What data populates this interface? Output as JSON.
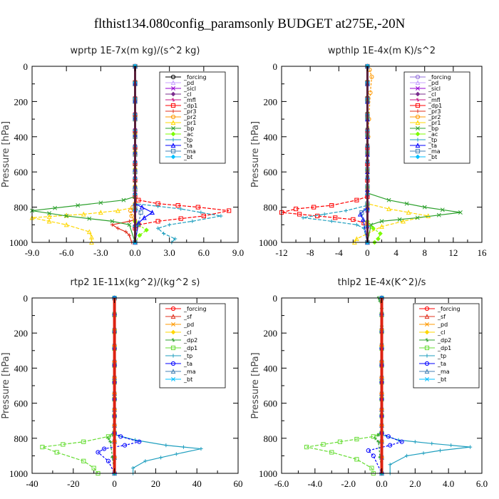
{
  "title": "flthist134.080config_paramsonly  BUDGET at275E,-20N",
  "chart_data": [
    {
      "type": "line",
      "title": "wprtp   1E-7x(m kg)/(s^2 kg)",
      "ylabel": "Pressure [hPa]",
      "xlim": [
        -9.0,
        9.0
      ],
      "ylim": [
        1000,
        0
      ],
      "xticks": [
        "-9.0",
        "-6.0",
        "-3.0",
        "0.0",
        "3.0",
        "6.0",
        "9.0"
      ],
      "yticks": [
        "0",
        "200",
        "400",
        "600",
        "800",
        "1000"
      ],
      "legend": [
        "_forcing",
        "_pd",
        "_sicl",
        "_cl",
        "_mfl",
        "_dp1",
        "_pr3",
        "_pr2",
        "_pr1",
        "_bp",
        "_ac",
        "_tp",
        "_ta",
        "_ma",
        "_bt"
      ],
      "series": [
        {
          "name": "_forcing",
          "color": "#000000",
          "x": [
            0,
            0
          ],
          "y": [
            0,
            1000
          ]
        },
        {
          "name": "_pd",
          "color": "#c8a2ff",
          "x": [
            0,
            0
          ],
          "y": [
            0,
            1000
          ]
        },
        {
          "name": "_sicl",
          "color": "#9400d3",
          "x": [
            0,
            0
          ],
          "y": [
            0,
            1000
          ]
        },
        {
          "name": "_cl",
          "color": "#7b2d8e",
          "x": [
            0,
            0
          ],
          "y": [
            0,
            1000
          ]
        },
        {
          "name": "_mfl",
          "color": "#c71585",
          "x": [
            0,
            0
          ],
          "y": [
            0,
            1000
          ]
        },
        {
          "name": "_dp1",
          "color": "#ff0000",
          "x": [
            0,
            0,
            0.3,
            2.0,
            5.5,
            8.2,
            6.0,
            2.0,
            0.3,
            0,
            0
          ],
          "y": [
            0,
            740,
            760,
            780,
            800,
            820,
            850,
            880,
            900,
            920,
            1000
          ]
        },
        {
          "name": "_pr3",
          "color": "#e0301e",
          "x": [
            0,
            0,
            -0.5,
            -2.0,
            -1.5,
            -0.8,
            -0.5,
            -0.3
          ],
          "y": [
            0,
            870,
            880,
            900,
            920,
            940,
            960,
            1000
          ]
        },
        {
          "name": "_pr2",
          "color": "#ff9900",
          "x": [
            0,
            0,
            -0.2,
            -0.4,
            -0.3,
            0,
            0
          ],
          "y": [
            0,
            780,
            800,
            820,
            850,
            880,
            1000
          ]
        },
        {
          "name": "_pr1",
          "color": "#ffd700",
          "x": [
            0,
            0,
            -1.5,
            -4.5,
            -9.0,
            -6.0,
            -4.0,
            -3.8,
            -3.8
          ],
          "y": [
            0,
            800,
            820,
            840,
            860,
            900,
            940,
            970,
            1000
          ]
        },
        {
          "name": "_bp",
          "color": "#2ca02c",
          "x": [
            0,
            0,
            -1.0,
            -5.0,
            -9.0,
            -6.0,
            -2.0,
            -0.5,
            0
          ],
          "y": [
            0,
            740,
            760,
            790,
            820,
            850,
            880,
            900,
            1000
          ]
        },
        {
          "name": "_ac",
          "color": "#7cfc00",
          "x": [
            0,
            0,
            0.3,
            1.0,
            0.4,
            0
          ],
          "y": [
            0,
            880,
            900,
            930,
            960,
            1000
          ]
        },
        {
          "name": "_tp",
          "color": "#1f9fbf",
          "x": [
            0,
            0,
            4.0,
            7.5,
            5.0,
            3.0,
            2.0,
            2.5,
            3.5,
            3.2
          ],
          "y": [
            0,
            780,
            810,
            850,
            880,
            900,
            920,
            950,
            980,
            1000
          ]
        },
        {
          "name": "_ta",
          "color": "#0000ff",
          "x": [
            0,
            0,
            0.6,
            1.5,
            0.8,
            0.3,
            0
          ],
          "y": [
            0,
            780,
            800,
            830,
            860,
            890,
            1000
          ]
        },
        {
          "name": "_ma",
          "color": "#4682b4",
          "x": [
            0,
            0,
            0.5,
            0
          ],
          "y": [
            0,
            800,
            830,
            1000
          ]
        },
        {
          "name": "_bt",
          "color": "#00bfff",
          "x": [
            0,
            0
          ],
          "y": [
            0,
            1000
          ]
        }
      ]
    },
    {
      "type": "line",
      "title": "wpthlp   1E-4x(m K)/s^2",
      "ylabel": "Pressure [hPa]",
      "xlim": [
        -12,
        16
      ],
      "ylim": [
        1000,
        0
      ],
      "xticks": [
        "-12",
        "-8",
        "-4",
        "0",
        "4",
        "8",
        "12",
        "16"
      ],
      "yticks": [
        "0",
        "200",
        "400",
        "600",
        "800",
        "1000"
      ],
      "legend": [
        "_forcing",
        "_pd",
        "_sicl",
        "_cl",
        "_mfl",
        "_dp1",
        "_pr3",
        "_pr2",
        "_pr1",
        "_bp",
        "_ac",
        "_tp",
        "_ta",
        "_ma",
        "_bt"
      ],
      "series": [
        {
          "name": "_forcing",
          "color": "#9370db",
          "x": [
            0,
            0
          ],
          "y": [
            0,
            1000
          ]
        },
        {
          "name": "_pd",
          "color": "#c8a2ff",
          "x": [
            0,
            0
          ],
          "y": [
            0,
            1000
          ]
        },
        {
          "name": "_sicl",
          "color": "#9400d3",
          "x": [
            0,
            0
          ],
          "y": [
            0,
            1000
          ]
        },
        {
          "name": "_cl",
          "color": "#7b2d8e",
          "x": [
            0,
            0
          ],
          "y": [
            0,
            1000
          ]
        },
        {
          "name": "_mfl",
          "color": "#c71585",
          "x": [
            0,
            0
          ],
          "y": [
            0,
            1000
          ]
        },
        {
          "name": "_dp1",
          "color": "#ff0000",
          "x": [
            0,
            0,
            -1.5,
            -5.0,
            -10.0,
            -12.0,
            -7.0,
            -2.0,
            -0.5,
            0
          ],
          "y": [
            0,
            740,
            760,
            790,
            810,
            830,
            850,
            870,
            890,
            1000
          ]
        },
        {
          "name": "_pr3",
          "color": "#e0301e",
          "x": [
            0,
            0
          ],
          "y": [
            0,
            1000
          ]
        },
        {
          "name": "_pr2",
          "color": "#ff9900",
          "x": [
            0,
            0.3,
            0.6,
            0.4,
            0.2,
            0,
            0
          ],
          "y": [
            0,
            20,
            60,
            150,
            300,
            500,
            1000
          ]
        },
        {
          "name": "_pr1",
          "color": "#ffd700",
          "x": [
            0,
            0,
            3.0,
            8.5,
            5.0,
            2.0,
            0,
            -1.5,
            -1.8
          ],
          "y": [
            0,
            780,
            810,
            850,
            880,
            910,
            950,
            980,
            1000
          ]
        },
        {
          "name": "_bp",
          "color": "#2ca02c",
          "x": [
            0,
            0,
            3.0,
            8.0,
            13.0,
            7.0,
            2.0,
            0.5,
            0
          ],
          "y": [
            0,
            720,
            760,
            800,
            830,
            860,
            880,
            900,
            1000
          ]
        },
        {
          "name": "_ac",
          "color": "#7cfc00",
          "x": [
            0,
            0,
            0.8,
            1.8,
            1.5,
            1.0
          ],
          "y": [
            0,
            880,
            920,
            950,
            980,
            1000
          ]
        },
        {
          "name": "_tp",
          "color": "#1f9fbf",
          "x": [
            0,
            0,
            -3.0,
            -9.0,
            -5.0,
            -1.5,
            -0.5,
            0
          ],
          "y": [
            0,
            790,
            820,
            860,
            880,
            900,
            920,
            1000
          ]
        },
        {
          "name": "_ta",
          "color": "#0000ff",
          "x": [
            0,
            0,
            -1.0,
            -0.6,
            0
          ],
          "y": [
            0,
            800,
            840,
            870,
            1000
          ]
        },
        {
          "name": "_ma",
          "color": "#4682b4",
          "x": [
            0,
            0,
            -0.8,
            0
          ],
          "y": [
            0,
            780,
            830,
            1000
          ]
        },
        {
          "name": "_bt",
          "color": "#00bfff",
          "x": [
            0,
            0
          ],
          "y": [
            0,
            1000
          ]
        }
      ]
    },
    {
      "type": "line",
      "title": "rtp2   1E-11x(kg^2)/(kg^2 s)",
      "ylabel": "Pressure [hPa]",
      "xlim": [
        -40,
        60
      ],
      "ylim": [
        1000,
        0
      ],
      "xticks": [
        "-40",
        "-20",
        "0",
        "20",
        "40",
        "60"
      ],
      "yticks": [
        "0",
        "200",
        "400",
        "600",
        "800",
        "1000"
      ],
      "legend": [
        "_forcing",
        "_sf",
        "_pd",
        "_cl",
        "_dp2",
        "_dp1",
        "_tp",
        "_ta",
        "_ma",
        "_bt"
      ],
      "series": [
        {
          "name": "_forcing",
          "color": "#ff0000",
          "x": [
            0,
            0
          ],
          "y": [
            0,
            1000
          ]
        },
        {
          "name": "_sf",
          "color": "#e0301e",
          "x": [
            0,
            0
          ],
          "y": [
            0,
            1000
          ]
        },
        {
          "name": "_pd",
          "color": "#ff9900",
          "x": [
            0,
            0
          ],
          "y": [
            0,
            1000
          ]
        },
        {
          "name": "_cl",
          "color": "#ffd700",
          "x": [
            0,
            0
          ],
          "y": [
            0,
            1000
          ]
        },
        {
          "name": "_dp2",
          "color": "#2ca02c",
          "x": [
            0,
            0,
            -1.0,
            -3.0,
            -2.0,
            0
          ],
          "y": [
            0,
            760,
            780,
            800,
            820,
            1000
          ]
        },
        {
          "name": "_dp1",
          "color": "#66dd33",
          "x": [
            0,
            0,
            -3.0,
            -15.0,
            -35.0,
            -28.0,
            -15.0,
            -10.0,
            -8.0
          ],
          "y": [
            0,
            770,
            790,
            820,
            850,
            880,
            930,
            970,
            1000
          ]
        },
        {
          "name": "_tp",
          "color": "#1f9fbf",
          "x": [
            0,
            0,
            10.0,
            25.0,
            42.0,
            30.0,
            15.0,
            9.0,
            9.0
          ],
          "y": [
            0,
            780,
            810,
            840,
            860,
            890,
            930,
            970,
            1000
          ]
        },
        {
          "name": "_ta",
          "color": "#0000ff",
          "x": [
            0,
            0,
            3.0,
            12.0,
            5.0,
            -5.0,
            -8.0,
            -3.0,
            0
          ],
          "y": [
            0,
            770,
            790,
            820,
            840,
            860,
            880,
            930,
            1000
          ]
        },
        {
          "name": "_ma",
          "color": "#4682b4",
          "x": [
            0,
            0
          ],
          "y": [
            0,
            1000
          ]
        },
        {
          "name": "_bt",
          "color": "#00bfff",
          "x": [
            0,
            0
          ],
          "y": [
            0,
            1000
          ]
        }
      ]
    },
    {
      "type": "line",
      "title": "thlp2   1E-4x(K^2)/s",
      "ylabel": "Pressure [hPa]",
      "xlim": [
        -6.0,
        6.0
      ],
      "ylim": [
        1000,
        0
      ],
      "xticks": [
        "-6.0",
        "-4.0",
        "-2.0",
        "0.0",
        "2.0",
        "4.0",
        "6.0"
      ],
      "yticks": [
        "0",
        "200",
        "400",
        "600",
        "800",
        "1000"
      ],
      "legend": [
        "_forcing",
        "_sf",
        "_pd",
        "_cl",
        "_dp2",
        "_dp1",
        "_tp",
        "_ta",
        "_ma",
        "_bt"
      ],
      "series": [
        {
          "name": "_forcing",
          "color": "#ff0000",
          "x": [
            0,
            0
          ],
          "y": [
            0,
            1000
          ]
        },
        {
          "name": "_sf",
          "color": "#e0301e",
          "x": [
            0,
            0
          ],
          "y": [
            0,
            1000
          ]
        },
        {
          "name": "_pd",
          "color": "#ff9900",
          "x": [
            0,
            0
          ],
          "y": [
            0,
            1000
          ]
        },
        {
          "name": "_cl",
          "color": "#ffd700",
          "x": [
            0,
            0
          ],
          "y": [
            0,
            1000
          ]
        },
        {
          "name": "_dp2",
          "color": "#2ca02c",
          "x": [
            -0.2,
            -0.1,
            0,
            0,
            -0.2,
            -0.4,
            -0.2,
            0
          ],
          "y": [
            0,
            20,
            60,
            760,
            780,
            800,
            820,
            1000
          ]
        },
        {
          "name": "_dp1",
          "color": "#66dd33",
          "x": [
            0,
            0,
            -0.5,
            -2.5,
            -4.5,
            -3.0,
            -1.5,
            -0.6,
            -0.5
          ],
          "y": [
            0,
            770,
            790,
            820,
            850,
            880,
            920,
            970,
            1000
          ]
        },
        {
          "name": "_tp",
          "color": "#1f9fbf",
          "x": [
            0,
            0,
            1.0,
            3.0,
            5.3,
            3.5,
            1.5,
            0.5,
            0.5
          ],
          "y": [
            0,
            780,
            810,
            830,
            850,
            870,
            900,
            950,
            1000
          ]
        },
        {
          "name": "_ta",
          "color": "#0000ff",
          "x": [
            0,
            0,
            0.4,
            1.2,
            0.5,
            -0.8,
            -0.5,
            0
          ],
          "y": [
            0,
            770,
            790,
            820,
            840,
            870,
            900,
            1000
          ]
        },
        {
          "name": "_ma",
          "color": "#4682b4",
          "x": [
            0,
            0
          ],
          "y": [
            0,
            1000
          ]
        },
        {
          "name": "_bt",
          "color": "#00bfff",
          "x": [
            0,
            0
          ],
          "y": [
            0,
            1000
          ]
        }
      ]
    }
  ]
}
